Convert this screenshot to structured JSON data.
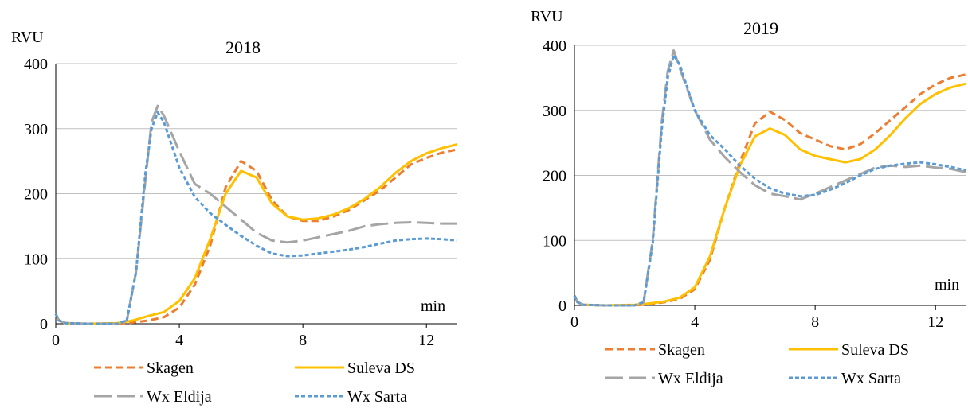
{
  "colors": {
    "skagen": "#ed7d31",
    "suleva": "#ffc000",
    "eldija": "#a5a5a5",
    "sarta": "#5b9bd5",
    "grid": "#bfbfbf",
    "axis": "#000000"
  },
  "chart_data": [
    {
      "type": "line",
      "title": "2018",
      "ylabel": "RVU",
      "xlabel": "min",
      "xlim": [
        0,
        13
      ],
      "ylim": [
        0,
        400
      ],
      "xticks": [
        0,
        4,
        8,
        12
      ],
      "yticks": [
        0,
        100,
        200,
        300,
        400
      ],
      "grid": true,
      "legend": "bottom",
      "series": [
        {
          "name": "Skagen",
          "style": "dashed",
          "x": [
            0,
            0.1,
            0.3,
            1,
            2,
            2.5,
            3,
            3.5,
            4,
            4.5,
            5,
            5.5,
            6,
            6.5,
            7,
            7.5,
            8,
            8.5,
            9,
            9.5,
            10,
            10.5,
            11,
            11.5,
            12,
            12.5,
            13
          ],
          "y": [
            15,
            5,
            1,
            0,
            0,
            2,
            5,
            10,
            25,
            60,
            120,
            210,
            250,
            235,
            190,
            165,
            158,
            158,
            165,
            175,
            190,
            205,
            225,
            245,
            255,
            263,
            268
          ]
        },
        {
          "name": "Suleva DS",
          "style": "solid",
          "x": [
            0,
            0.1,
            0.3,
            1,
            2,
            2.5,
            3,
            3.5,
            4,
            4.5,
            5,
            5.5,
            6,
            6.5,
            7,
            7.5,
            8,
            8.5,
            9,
            9.5,
            10,
            10.5,
            11,
            11.5,
            12,
            12.5,
            13
          ],
          "y": [
            15,
            5,
            1,
            0,
            1,
            5,
            12,
            18,
            35,
            70,
            130,
            200,
            235,
            225,
            185,
            165,
            160,
            162,
            168,
            178,
            192,
            210,
            232,
            250,
            262,
            270,
            276
          ]
        },
        {
          "name": "Wx Eldija",
          "style": "longdash",
          "x": [
            0,
            0.1,
            0.3,
            1,
            2,
            2.3,
            2.6,
            2.9,
            3.1,
            3.3,
            3.5,
            4,
            4.5,
            5,
            5.5,
            6,
            6.5,
            7,
            7.5,
            8,
            8.5,
            9,
            9.5,
            10,
            10.5,
            11,
            11.5,
            12,
            12.5,
            13
          ],
          "y": [
            15,
            5,
            1,
            0,
            0,
            5,
            80,
            220,
            310,
            335,
            320,
            265,
            215,
            200,
            180,
            160,
            140,
            128,
            125,
            128,
            133,
            138,
            143,
            150,
            153,
            155,
            156,
            155,
            154,
            154
          ]
        },
        {
          "name": "Wx Sarta",
          "style": "dotted",
          "x": [
            0,
            0.1,
            0.3,
            1,
            2,
            2.3,
            2.6,
            2.9,
            3.1,
            3.3,
            3.5,
            4,
            4.5,
            5,
            5.5,
            6,
            6.5,
            7,
            7.5,
            8,
            8.5,
            9,
            9.5,
            10,
            10.5,
            11,
            11.5,
            12,
            12.5,
            13
          ],
          "y": [
            15,
            5,
            1,
            0,
            0,
            5,
            80,
            230,
            300,
            325,
            310,
            240,
            195,
            170,
            152,
            135,
            120,
            108,
            104,
            105,
            108,
            111,
            114,
            118,
            123,
            128,
            130,
            131,
            130,
            128
          ]
        }
      ]
    },
    {
      "type": "line",
      "title": "2019",
      "ylabel": "RVU",
      "xlabel": "min",
      "xlim": [
        0,
        13
      ],
      "ylim": [
        0,
        400
      ],
      "xticks": [
        0,
        4,
        8,
        12
      ],
      "yticks": [
        0,
        100,
        200,
        300,
        400
      ],
      "grid": true,
      "legend": "bottom",
      "series": [
        {
          "name": "Skagen",
          "style": "dashed",
          "x": [
            0,
            0.1,
            0.3,
            1,
            2,
            2.5,
            3,
            3.5,
            4,
            4.5,
            5,
            5.5,
            6,
            6.5,
            7,
            7.5,
            8,
            8.5,
            9,
            9.5,
            10,
            10.5,
            11,
            11.5,
            12,
            12.5,
            13
          ],
          "y": [
            15,
            5,
            1,
            0,
            0,
            2,
            5,
            10,
            25,
            70,
            150,
            220,
            280,
            298,
            285,
            265,
            255,
            245,
            240,
            248,
            265,
            285,
            305,
            325,
            340,
            350,
            355
          ]
        },
        {
          "name": "Suleva DS",
          "style": "solid",
          "x": [
            0,
            0.1,
            0.3,
            1,
            2,
            2.5,
            3,
            3.5,
            4,
            4.5,
            5,
            5.5,
            6,
            6.5,
            7,
            7.5,
            8,
            8.5,
            9,
            9.5,
            10,
            10.5,
            11,
            11.5,
            12,
            12.5,
            13
          ],
          "y": [
            15,
            5,
            1,
            0,
            1,
            3,
            6,
            12,
            28,
            75,
            150,
            215,
            260,
            272,
            262,
            240,
            230,
            225,
            220,
            225,
            240,
            262,
            288,
            310,
            325,
            335,
            341
          ]
        },
        {
          "name": "Wx Eldija",
          "style": "longdash",
          "x": [
            0,
            0.1,
            0.3,
            1,
            2,
            2.3,
            2.6,
            2.9,
            3.1,
            3.3,
            3.5,
            4,
            4.5,
            5,
            5.5,
            6,
            6.5,
            7,
            7.5,
            8,
            8.5,
            9,
            9.5,
            10,
            10.5,
            11,
            11.5,
            12,
            12.5,
            13
          ],
          "y": [
            15,
            5,
            1,
            0,
            0,
            5,
            100,
            280,
            360,
            392,
            365,
            300,
            255,
            228,
            205,
            185,
            172,
            168,
            163,
            172,
            182,
            192,
            202,
            212,
            215,
            213,
            215,
            212,
            210,
            205
          ]
        },
        {
          "name": "Wx Sarta",
          "style": "dotted",
          "x": [
            0,
            0.1,
            0.3,
            1,
            2,
            2.3,
            2.6,
            2.9,
            3.1,
            3.3,
            3.5,
            4,
            4.5,
            5,
            5.5,
            6,
            6.5,
            7,
            7.5,
            8,
            8.5,
            9,
            9.5,
            10,
            10.5,
            11,
            11.5,
            12,
            12.5,
            13
          ],
          "y": [
            15,
            5,
            1,
            0,
            0,
            5,
            95,
            270,
            350,
            385,
            370,
            300,
            262,
            240,
            215,
            195,
            180,
            172,
            168,
            170,
            178,
            188,
            200,
            210,
            215,
            218,
            220,
            217,
            213,
            208
          ]
        }
      ]
    }
  ]
}
